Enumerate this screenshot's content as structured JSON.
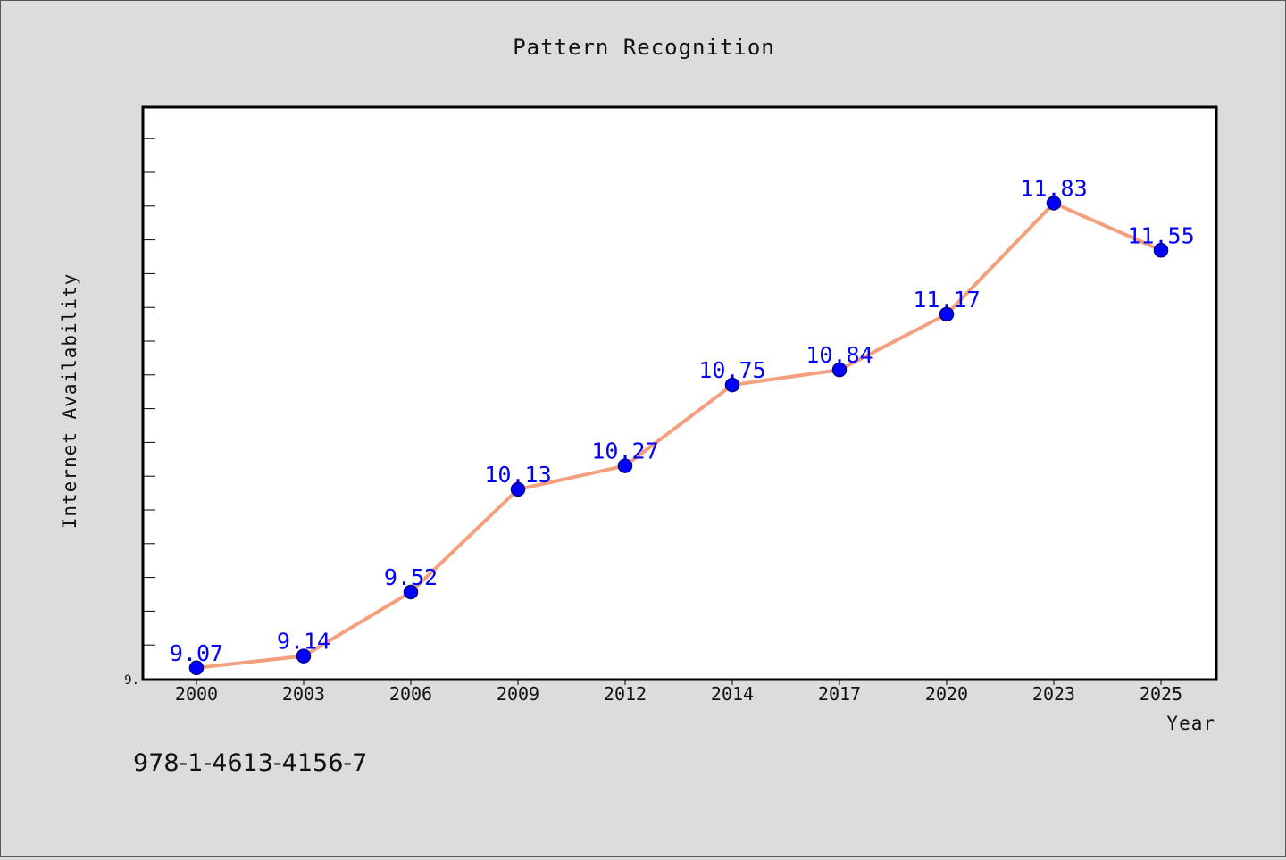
{
  "chart_data": {
    "type": "line",
    "title": "Pattern Recognition",
    "xlabel": "Year",
    "ylabel": "Internet Availability",
    "categories": [
      "2000",
      "2003",
      "2006",
      "2009",
      "2012",
      "2014",
      "2017",
      "2020",
      "2023",
      "2025"
    ],
    "series": [
      {
        "values": [
          9.07,
          9.14,
          9.52,
          10.13,
          10.27,
          10.75,
          10.84,
          11.17,
          11.83,
          11.55
        ],
        "data_labels": [
          "9.07",
          "9.14",
          "9.52",
          "10.13",
          "10.27",
          "10.75",
          "10.84",
          "11.17",
          "11.83",
          "11.55"
        ],
        "line_color": "#f4a07e",
        "marker_color": "#0000ff"
      }
    ],
    "y_tick_label": "9.",
    "ylim": [
      9.0,
      12.4
    ],
    "grid": false
  },
  "footer": {
    "code": "978-1-4613-4156-7"
  }
}
